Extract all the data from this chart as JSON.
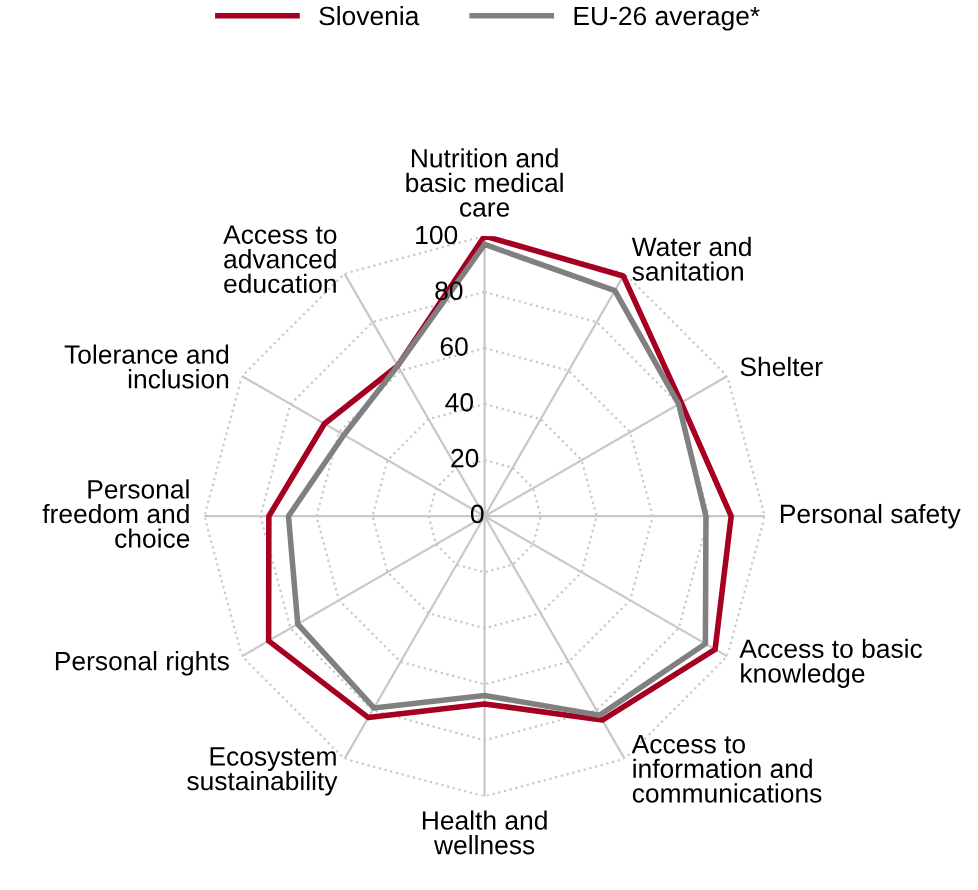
{
  "chart_data": {
    "type": "radar",
    "categories": [
      "Nutrition and\nbasic medical\ncare",
      "Water and\nsanitation",
      "Shelter",
      "Personal safety",
      "Access to basic\nknowledge",
      "Access to\ninformation and\ncommunications",
      "Health and\nwellness",
      "Ecosystem\nsustainability",
      "Personal rights",
      "Personal\nfreedom and\nchoice",
      "Tolerance and\ninclusion",
      "Access to\nadvanced\neducation"
    ],
    "series": [
      {
        "name": "Slovenia",
        "color": "#a50021",
        "values": [
          100,
          99,
          81,
          88,
          95,
          84,
          67,
          83,
          89,
          77,
          66,
          62
        ]
      },
      {
        "name": "EU-26 average*",
        "color": "#808080",
        "values": [
          97,
          93,
          80,
          79,
          91,
          82,
          64,
          79,
          77,
          70,
          58,
          62
        ]
      }
    ],
    "ylim": [
      0,
      100
    ],
    "yticks": [
      0,
      20,
      40,
      60,
      80,
      100
    ],
    "grid": true,
    "legend": "top",
    "marker": "none",
    "line_style": "solid"
  }
}
